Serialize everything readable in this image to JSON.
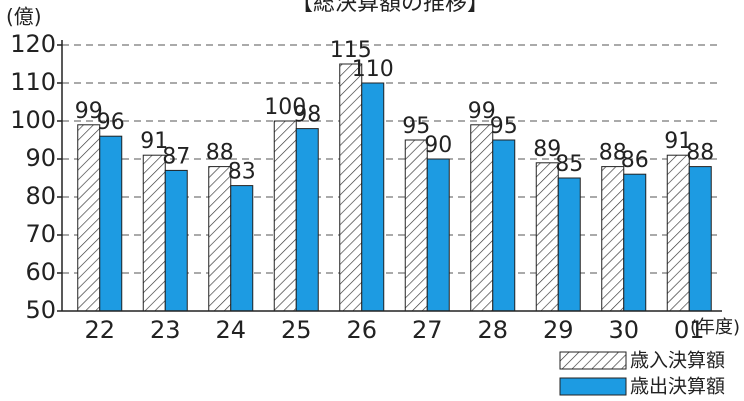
{
  "chart_data": {
    "type": "bar",
    "title": "【総決算額の推移】",
    "y_label": "(億)",
    "x_label": "(年度)",
    "categories": [
      "22",
      "23",
      "24",
      "25",
      "26",
      "27",
      "28",
      "29",
      "30",
      "01"
    ],
    "series": [
      {
        "name": "歳入決算額",
        "color": "#333333",
        "hatch": true,
        "values": [
          99,
          91,
          88,
          100,
          115,
          95,
          99,
          89,
          88,
          91
        ]
      },
      {
        "name": "歳出決算額",
        "color": "#1d9be2",
        "hatch": false,
        "values": [
          96,
          87,
          83,
          98,
          110,
          90,
          95,
          85,
          86,
          88
        ]
      }
    ],
    "ylim": [
      50,
      120
    ],
    "yticks": [
      50,
      60,
      70,
      80,
      90,
      100,
      110,
      120
    ],
    "grid": true,
    "legend": "bottom-right"
  }
}
